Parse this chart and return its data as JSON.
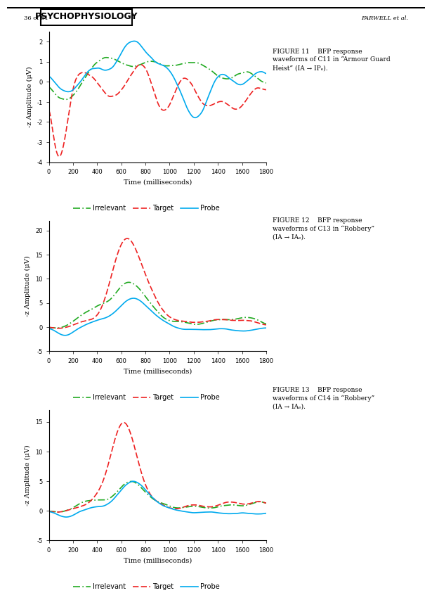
{
  "header_left": "36 of 51",
  "header_center": "PSYCHOPHYSIOLOGY",
  "header_right": "FARWELL et al.",
  "fig11_title": "FIGURE 11    BFP response\nwaveforms of C11 in “Armour Guard\nHeist” (IA → IPₑ).",
  "fig12_title": "FIGURE 12    BFP response\nwaveforms of C13 in “Robbery”\n(IA → IAₑ).",
  "fig13_title": "FIGURE 13    BFP response\nwaveforms of C14 in “Robbery”\n(IA → IAₑ).",
  "xlabel": "Time (milliseconds)",
  "ylabel": "-z Amplitude (μV)",
  "xticks": [
    0,
    200,
    400,
    600,
    800,
    1000,
    1200,
    1400,
    1600,
    1800
  ],
  "plot1_ylim": [
    -4,
    2.5
  ],
  "plot1_yticks": [
    -4,
    -3,
    -2,
    -1,
    0,
    1,
    2
  ],
  "plot2_ylim": [
    -5,
    22
  ],
  "plot2_yticks": [
    -5,
    0,
    5,
    10,
    15,
    20
  ],
  "plot3_ylim": [
    -5,
    17
  ],
  "plot3_yticks": [
    -5,
    0,
    5,
    10,
    15
  ],
  "irrelevant_color": "#22aa22",
  "target_color": "#ee2222",
  "probe_color": "#00aaee",
  "line_width": 1.2,
  "legend_labels": [
    "Irrelevant",
    "Target",
    "Probe"
  ]
}
